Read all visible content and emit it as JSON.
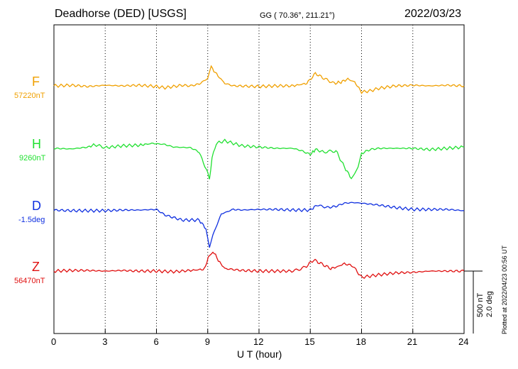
{
  "header": {
    "station": "Deadhorse (DED)  [USGS]",
    "coords": "GG ( 70.36°, 211.21°)",
    "date": "2022/03/23"
  },
  "chart_data": {
    "type": "line",
    "xlabel": "U T (hour)",
    "xlim": [
      0,
      24
    ],
    "xticks": [
      "0",
      "3",
      "6",
      "9",
      "12",
      "15",
      "18",
      "21",
      "24"
    ],
    "scale": {
      "field": "500 nT",
      "declination": "2.0 deg"
    },
    "series": [
      {
        "name": "F",
        "baseline": "57220nT",
        "color": "#f0a000",
        "points": [
          [
            0,
            0
          ],
          [
            1,
            5
          ],
          [
            2,
            -5
          ],
          [
            3,
            5
          ],
          [
            4,
            0
          ],
          [
            5,
            5
          ],
          [
            6,
            -5
          ],
          [
            6.5,
            -15
          ],
          [
            7.5,
            5
          ],
          [
            8,
            0
          ],
          [
            8.5,
            15
          ],
          [
            9,
            60
          ],
          [
            9.2,
            150
          ],
          [
            9.6,
            80
          ],
          [
            10,
            20
          ],
          [
            10.5,
            0
          ],
          [
            12,
            -5
          ],
          [
            13,
            0
          ],
          [
            14,
            0
          ],
          [
            14.8,
            20
          ],
          [
            15.3,
            100
          ],
          [
            15.8,
            60
          ],
          [
            16.4,
            20
          ],
          [
            16.8,
            30
          ],
          [
            17.2,
            55
          ],
          [
            17.6,
            30
          ],
          [
            18,
            -50
          ],
          [
            18.5,
            -40
          ],
          [
            19,
            -20
          ],
          [
            20,
            0
          ],
          [
            21,
            5
          ],
          [
            22,
            0
          ],
          [
            23,
            5
          ],
          [
            24,
            0
          ]
        ]
      },
      {
        "name": "H",
        "baseline": "9260nT",
        "color": "#20e030",
        "points": [
          [
            0,
            0
          ],
          [
            1,
            -5
          ],
          [
            2,
            10
          ],
          [
            2.4,
            30
          ],
          [
            3,
            5
          ],
          [
            4,
            20
          ],
          [
            5,
            25
          ],
          [
            5.8,
            40
          ],
          [
            6.5,
            30
          ],
          [
            7,
            10
          ],
          [
            8,
            5
          ],
          [
            8.5,
            -30
          ],
          [
            9,
            -200
          ],
          [
            9.1,
            -250
          ],
          [
            9.25,
            -80
          ],
          [
            9.5,
            40
          ],
          [
            10,
            60
          ],
          [
            11,
            20
          ],
          [
            12,
            10
          ],
          [
            13,
            0
          ],
          [
            14,
            0
          ],
          [
            14.5,
            -20
          ],
          [
            15,
            -50
          ],
          [
            15.3,
            -10
          ],
          [
            15.8,
            -30
          ],
          [
            16.5,
            -20
          ],
          [
            17,
            -150
          ],
          [
            17.4,
            -240
          ],
          [
            17.6,
            -200
          ],
          [
            17.8,
            -150
          ],
          [
            18,
            -40
          ],
          [
            18.5,
            -10
          ],
          [
            19,
            0
          ],
          [
            20,
            0
          ],
          [
            21,
            0
          ],
          [
            22,
            -10
          ],
          [
            23,
            0
          ],
          [
            24,
            10
          ]
        ]
      },
      {
        "name": "D",
        "baseline": "-1.5deg",
        "color": "#1030e0",
        "points": [
          [
            0,
            0
          ],
          [
            1,
            -5
          ],
          [
            2,
            -5
          ],
          [
            3,
            -5
          ],
          [
            4,
            0
          ],
          [
            5,
            0
          ],
          [
            6,
            5
          ],
          [
            6.5,
            -40
          ],
          [
            7.5,
            -80
          ],
          [
            8.5,
            -80
          ],
          [
            8.9,
            -150
          ],
          [
            9.1,
            -300
          ],
          [
            9.3,
            -200
          ],
          [
            9.8,
            -30
          ],
          [
            10.5,
            5
          ],
          [
            11,
            0
          ],
          [
            12,
            5
          ],
          [
            13,
            5
          ],
          [
            14,
            0
          ],
          [
            15,
            0
          ],
          [
            15.4,
            40
          ],
          [
            16,
            20
          ],
          [
            16.5,
            30
          ],
          [
            17,
            55
          ],
          [
            17.5,
            60
          ],
          [
            18,
            55
          ],
          [
            19,
            40
          ],
          [
            20,
            20
          ],
          [
            21,
            5
          ],
          [
            22,
            5
          ],
          [
            23,
            5
          ],
          [
            24,
            -5
          ]
        ]
      },
      {
        "name": "Z",
        "baseline": "56470nT",
        "color": "#e01010",
        "points": [
          [
            0,
            0
          ],
          [
            1,
            5
          ],
          [
            2,
            5
          ],
          [
            3,
            0
          ],
          [
            4,
            5
          ],
          [
            5,
            0
          ],
          [
            6,
            0
          ],
          [
            7,
            -5
          ],
          [
            8,
            5
          ],
          [
            8.8,
            15
          ],
          [
            9.1,
            130
          ],
          [
            9.3,
            160
          ],
          [
            9.7,
            70
          ],
          [
            10,
            20
          ],
          [
            11,
            5
          ],
          [
            12,
            0
          ],
          [
            13,
            0
          ],
          [
            14,
            0
          ],
          [
            14.7,
            30
          ],
          [
            15.2,
            90
          ],
          [
            15.7,
            55
          ],
          [
            16.2,
            20
          ],
          [
            16.6,
            35
          ],
          [
            17,
            60
          ],
          [
            17.5,
            40
          ],
          [
            18,
            -50
          ],
          [
            19,
            -30
          ],
          [
            20,
            -15
          ],
          [
            21,
            -10
          ],
          [
            22,
            0
          ],
          [
            23,
            0
          ],
          [
            24,
            0
          ]
        ]
      }
    ]
  },
  "footer": {
    "plotted": "Plotted at 2022/04/23 00:56 UT"
  }
}
